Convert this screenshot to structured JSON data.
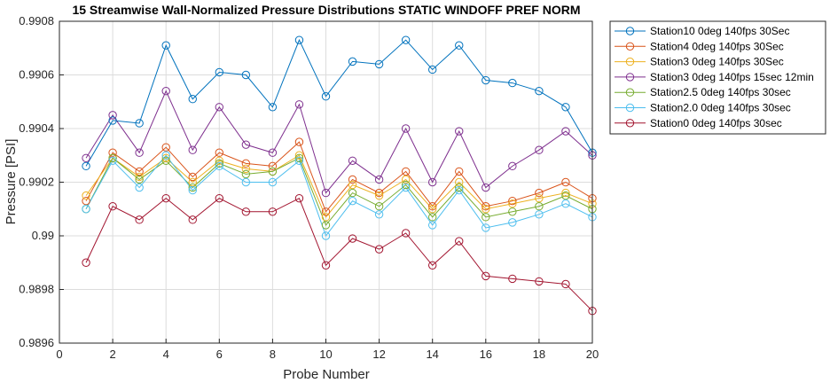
{
  "chart_data": {
    "type": "line",
    "title": "15 Streamwise Wall-Normalized Pressure Distributions STATIC WINDOFF PREF NORM",
    "xlabel": "Probe Number",
    "ylabel": "Pressure [PSI]",
    "xlim": [
      0,
      20
    ],
    "ylim": [
      0.9896,
      0.9908
    ],
    "xticks": [
      0,
      2,
      4,
      6,
      8,
      10,
      12,
      14,
      16,
      18,
      20
    ],
    "xtick_labels": [
      "0",
      "2",
      "4",
      "6",
      "8",
      "10",
      "12",
      "14",
      "16",
      "18",
      "20"
    ],
    "yticks": [
      0.9896,
      0.9898,
      0.99,
      0.9902,
      0.9904,
      0.9906,
      0.9908
    ],
    "ytick_labels": [
      "0.9896",
      "0.9898",
      "0.99",
      "0.9902",
      "0.9904",
      "0.9906",
      "0.9908"
    ],
    "grid": true,
    "legend_position": "outside-top-right",
    "marker": "circle",
    "x": [
      1,
      2,
      3,
      4,
      5,
      6,
      7,
      8,
      9,
      10,
      11,
      12,
      13,
      14,
      15,
      16,
      17,
      18,
      19,
      20
    ],
    "series": [
      {
        "name": "Station10 0deg 140fps 30Sec",
        "color": "#0072BD",
        "values": [
          0.99026,
          0.99043,
          0.99042,
          0.99071,
          0.99051,
          0.99061,
          0.9906,
          0.99048,
          0.99073,
          0.99052,
          0.99065,
          0.99064,
          0.99073,
          0.99062,
          0.99071,
          0.99058,
          0.99057,
          0.99054,
          0.99048,
          0.99031
        ]
      },
      {
        "name": "Station4 0deg 140fps 30Sec",
        "color": "#D95319",
        "values": [
          0.99013,
          0.99031,
          0.99024,
          0.99033,
          0.99022,
          0.99031,
          0.99027,
          0.99026,
          0.99035,
          0.99009,
          0.99021,
          0.99016,
          0.99024,
          0.99011,
          0.99024,
          0.99011,
          0.99013,
          0.99016,
          0.9902,
          0.99014
        ]
      },
      {
        "name": "Station3 0deg 140fps 30Sec",
        "color": "#EDB120",
        "values": [
          0.99015,
          0.99029,
          0.99022,
          0.99029,
          0.9902,
          0.99028,
          0.99025,
          0.99024,
          0.9903,
          0.99007,
          0.99019,
          0.99015,
          0.99021,
          0.9901,
          0.9902,
          0.9901,
          0.99012,
          0.99014,
          0.99016,
          0.99012
        ]
      },
      {
        "name": "Station3 0deg 140fps 15sec 12min",
        "color": "#7E2F8E",
        "values": [
          0.99029,
          0.99045,
          0.99031,
          0.99054,
          0.99032,
          0.99048,
          0.99034,
          0.99031,
          0.99049,
          0.99016,
          0.99028,
          0.99021,
          0.9904,
          0.9902,
          0.99039,
          0.99018,
          0.99026,
          0.99032,
          0.99039,
          0.9903
        ]
      },
      {
        "name": "Station2.5 0deg 140fps 30sec",
        "color": "#77AC30",
        "values": [
          0.9901,
          0.99029,
          0.99021,
          0.99028,
          0.99018,
          0.99027,
          0.99023,
          0.99024,
          0.99029,
          0.99004,
          0.99016,
          0.99011,
          0.99019,
          0.99007,
          0.99018,
          0.99007,
          0.99009,
          0.99011,
          0.99015,
          0.9901
        ]
      },
      {
        "name": "Station2.0 0deg 140fps 30sec",
        "color": "#4DBEEE",
        "values": [
          0.9901,
          0.99028,
          0.99018,
          0.9903,
          0.99017,
          0.99026,
          0.9902,
          0.9902,
          0.99028,
          0.99,
          0.99013,
          0.99008,
          0.99018,
          0.99004,
          0.99017,
          0.99003,
          0.99005,
          0.99008,
          0.99012,
          0.99007
        ]
      },
      {
        "name": "Station0 0deg 140fps 30sec",
        "color": "#A2142F",
        "values": [
          0.9899,
          0.99011,
          0.99006,
          0.99014,
          0.99006,
          0.99014,
          0.99009,
          0.99009,
          0.99014,
          0.98989,
          0.98999,
          0.98995,
          0.99001,
          0.98989,
          0.98998,
          0.98985,
          0.98984,
          0.98983,
          0.98982,
          0.98972
        ]
      }
    ]
  }
}
